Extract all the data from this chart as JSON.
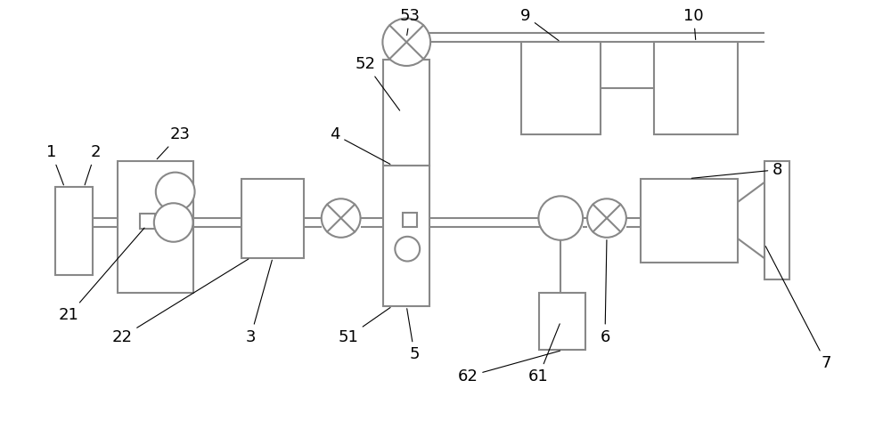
{
  "bg_color": "#ffffff",
  "lc": "#888888",
  "lw": 1.5,
  "fs": 13
}
